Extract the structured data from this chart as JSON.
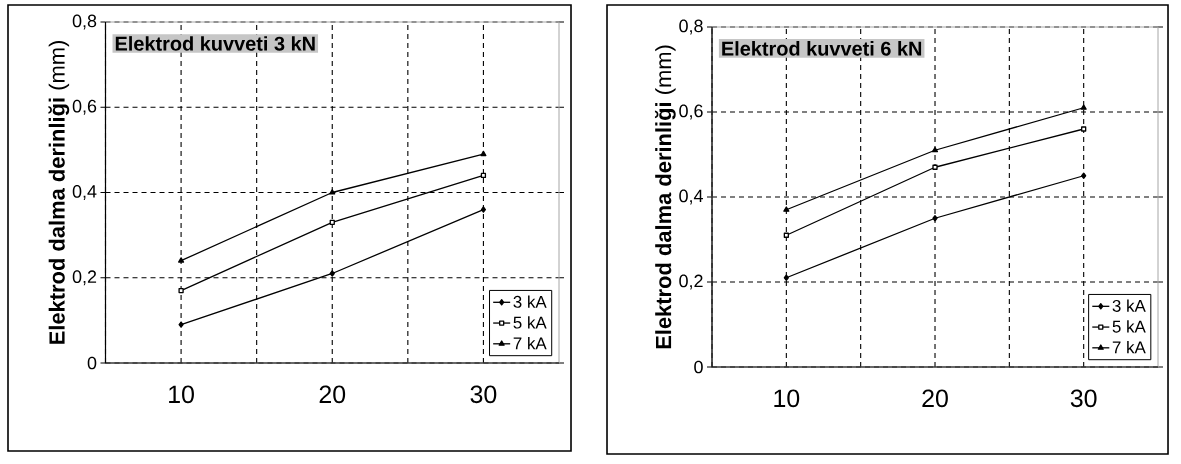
{
  "chart_data": [
    {
      "type": "line",
      "title": "Elektrod kuvveti 3 kN",
      "ylabel": "**Elektrod dalma derinliği** (mm)",
      "x": [
        10,
        20,
        30
      ],
      "series": [
        {
          "name": "3 kA",
          "color": "#000000",
          "marker": "diamond",
          "values": [
            0.09,
            0.21,
            0.36
          ]
        },
        {
          "name": "5 kA",
          "color": "#000000",
          "marker": "square",
          "values": [
            0.17,
            0.33,
            0.44
          ]
        },
        {
          "name": "7 kA",
          "color": "#000000",
          "marker": "triangle",
          "values": [
            0.24,
            0.4,
            0.49
          ]
        }
      ],
      "xlim": [
        5,
        35
      ],
      "xticks": [
        {
          "value": 5,
          "label": null
        },
        10,
        {
          "value": 15,
          "label": null
        },
        20,
        {
          "value": 25,
          "label": null
        },
        30
      ],
      "ylim": [
        0,
        0.8
      ],
      "yticks": [
        0,
        {
          "value": 0.2,
          "label": "0,2"
        },
        {
          "value": 0.4,
          "label": "0,4"
        },
        {
          "value": 0.6,
          "label": "0,6"
        },
        {
          "value": 0.8,
          "label": "0,8"
        }
      ],
      "grid": true,
      "legend": "bottom right",
      "line_style": "solid"
    },
    {
      "type": "line",
      "title": "Elektrod kuvveti 6 kN",
      "ylabel": "**Elektrod dalma derinliği** (mm)",
      "x": [
        10,
        20,
        30
      ],
      "series": [
        {
          "name": "3 kA",
          "color": "#000000",
          "marker": "diamond",
          "values": [
            0.21,
            0.35,
            0.45
          ]
        },
        {
          "name": "5 kA",
          "color": "#000000",
          "marker": "square",
          "values": [
            0.31,
            0.47,
            0.56
          ]
        },
        {
          "name": "7 kA",
          "color": "#000000",
          "marker": "triangle",
          "values": [
            0.37,
            0.51,
            0.61
          ]
        }
      ],
      "xlim": [
        5,
        35
      ],
      "xticks": [
        {
          "value": 5,
          "label": null
        },
        10,
        {
          "value": 15,
          "label": null
        },
        20,
        {
          "value": 25,
          "label": null
        },
        30
      ],
      "ylim": [
        0,
        0.8
      ],
      "yticks": [
        0,
        {
          "value": 0.2,
          "label": "0,2"
        },
        {
          "value": 0.4,
          "label": "0,4"
        },
        {
          "value": 0.6,
          "label": "0,6"
        },
        {
          "value": 0.8,
          "label": "0,8"
        }
      ],
      "grid": true,
      "legend": "bottom right",
      "line_style": "solid"
    }
  ]
}
